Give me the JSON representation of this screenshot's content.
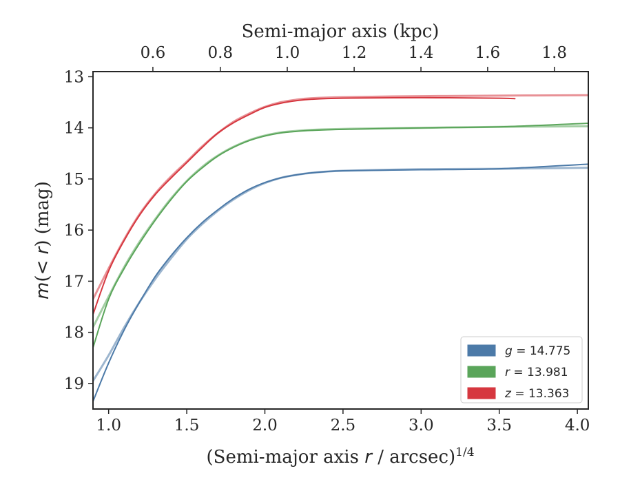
{
  "chart_data": {
    "type": "line",
    "xlabel": {
      "prefix": "(Semi-major axis ",
      "var": "r",
      "suffix": " / arcsec)",
      "sup": "1/4"
    },
    "ylabel": {
      "prefix": "m",
      "open": "(",
      "var": "< r",
      "close": ")",
      "suffix": " (mag)"
    },
    "top_xlabel": "Semi-major axis (kpc)",
    "xlim": [
      0.9,
      4.07
    ],
    "ylim": [
      19.5,
      12.9
    ],
    "y_inverted": true,
    "x_ticks": [
      "1.0",
      "1.5",
      "2.0",
      "2.5",
      "3.0",
      "3.5",
      "4.0"
    ],
    "y_ticks": [
      "13",
      "14",
      "15",
      "16",
      "17",
      "18",
      "19"
    ],
    "top_ticks": [
      "0.6",
      "0.8",
      "1.0",
      "1.2",
      "1.4",
      "1.6",
      "1.8"
    ],
    "top_tick_positions_x": [
      1.2832,
      1.7148,
      2.1433,
      2.5715,
      2.9989,
      3.4258,
      3.8527
    ],
    "grid": false,
    "legend_position": "lower-right",
    "series": [
      {
        "key": "g",
        "legend_var": "g",
        "legend_value": " = 14.775",
        "color": "#4c7aa8",
        "x": [
          0.9,
          1.0,
          1.1,
          1.2,
          1.3,
          1.4,
          1.5,
          1.6,
          1.7,
          1.8,
          1.9,
          2.0,
          2.1,
          2.2,
          2.3,
          2.5,
          3.0,
          3.5,
          4.07
        ],
        "y": [
          19.35,
          18.6,
          17.95,
          17.4,
          16.9,
          16.5,
          16.15,
          15.85,
          15.6,
          15.38,
          15.2,
          15.07,
          14.98,
          14.92,
          14.88,
          14.84,
          14.82,
          14.8,
          14.71
        ],
        "y_alt": [
          18.95,
          18.45,
          17.9,
          17.4,
          16.95,
          16.55,
          16.18,
          15.88,
          15.62,
          15.4,
          15.22,
          15.08,
          14.98,
          14.92,
          14.88,
          14.84,
          14.81,
          14.8,
          14.78
        ]
      },
      {
        "key": "r",
        "legend_var": "r",
        "legend_value": " = 13.981",
        "color": "#5aa55a",
        "x": [
          0.9,
          1.0,
          1.1,
          1.2,
          1.3,
          1.4,
          1.5,
          1.6,
          1.7,
          1.8,
          1.9,
          2.0,
          2.1,
          2.2,
          2.3,
          2.5,
          3.0,
          3.5,
          4.07
        ],
        "y": [
          18.3,
          17.35,
          16.75,
          16.25,
          15.8,
          15.4,
          15.05,
          14.78,
          14.55,
          14.38,
          14.25,
          14.16,
          14.1,
          14.07,
          14.05,
          14.03,
          14.0,
          13.98,
          13.91
        ],
        "y_alt": [
          17.9,
          17.3,
          16.72,
          16.22,
          15.78,
          15.38,
          15.04,
          14.76,
          14.54,
          14.37,
          14.24,
          14.15,
          14.09,
          14.06,
          14.04,
          14.02,
          14.0,
          13.98,
          13.97
        ]
      },
      {
        "key": "z",
        "legend_var": "z",
        "legend_value": " = 13.363",
        "color": "#d6373f",
        "x": [
          0.9,
          1.0,
          1.1,
          1.2,
          1.3,
          1.4,
          1.5,
          1.6,
          1.7,
          1.8,
          1.9,
          2.0,
          2.1,
          2.2,
          2.3,
          2.5,
          3.0,
          3.5,
          3.6
        ],
        "y": [
          17.65,
          16.8,
          16.2,
          15.7,
          15.3,
          14.98,
          14.68,
          14.38,
          14.1,
          13.9,
          13.74,
          13.6,
          13.52,
          13.47,
          13.44,
          13.42,
          13.41,
          13.42,
          13.43
        ],
        "y_alt": [
          17.35,
          16.75,
          16.18,
          15.68,
          15.28,
          14.95,
          14.66,
          14.36,
          14.1,
          13.88,
          13.72,
          13.59,
          13.5,
          13.45,
          13.42,
          13.4,
          13.38,
          13.37,
          13.36
        ],
        "x_alt_end": 4.07
      }
    ]
  }
}
